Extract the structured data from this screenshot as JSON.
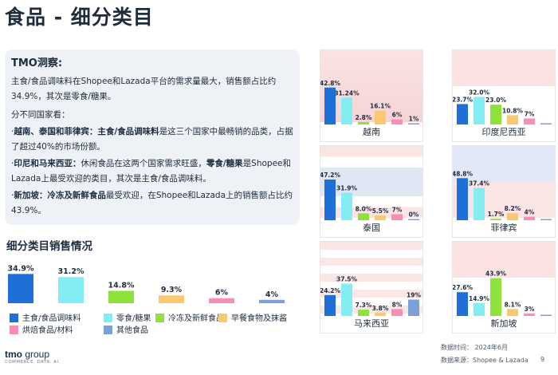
{
  "page_title": "食品 - 细分类目",
  "insight": {
    "heading": "TMO洞察:",
    "p1": "主食/食品调味料在Shopee和Lazada平台的需求量最大，销售额占比约34.9%，其次是零食/糖果。",
    "p2": "分不同国家看：",
    "b1_bold1": "越南、泰国和菲律宾：",
    "b1_bold2": "主食/食品调味料",
    "b1_rest": "是这三个国家中最畅销的品类，占据了超过40%的市场份额。",
    "b2_bold1": "印尼和马来西亚：",
    "b2_mid": "休闲食品在这两个国家需求旺盛，",
    "b2_bold2": "零食/糖果",
    "b2_rest": "是Shopee和Lazada上最受欢迎的类目，其次是主食/食品调味料。",
    "b3_bold1": "新加坡：",
    "b3_bold2": "冷冻及新鲜食品",
    "b3_rest": "最受欢迎，在Shopee和Lazada上的销售额占比约43.9%。"
  },
  "section_title": "细分类目销售情况",
  "colors": {
    "c1": "#1f6fd8",
    "c2": "#84ecf3",
    "c3": "#8ee23a",
    "c4": "#fac870",
    "c5": "#f58fb6",
    "c6": "#7b9fd6"
  },
  "legend": [
    {
      "label": "主食/食品调味料",
      "color": "#1f6fd8"
    },
    {
      "label": "零食/糖果",
      "color": "#84ecf3"
    },
    {
      "label": "冷冻及新鲜食品",
      "color": "#8ee23a"
    },
    {
      "label": "早餐食物及抹酱",
      "color": "#fac870"
    },
    {
      "label": "烘焙食品/材料",
      "color": "#f58fb6"
    },
    {
      "label": "其他食品",
      "color": "#7b9fd6"
    }
  ],
  "chart_data": [
    {
      "type": "bar",
      "title": "细分类目销售情况",
      "categories": [
        "主食/食品调味料",
        "零食/糖果",
        "冷冻及新鲜食品",
        "早餐食物及抹酱",
        "烘焙食品/材料",
        "其他食品"
      ],
      "values": [
        34.9,
        31.2,
        14.8,
        9.3,
        6,
        4
      ],
      "labels": [
        "34.9%",
        "31.2%",
        "14.8%",
        "9.3%",
        "6%",
        "4%"
      ],
      "ylim": [
        0,
        40
      ]
    },
    {
      "type": "bar",
      "name": "越南",
      "values": [
        42.8,
        31.24,
        2.8,
        16.1,
        6,
        1
      ],
      "labels": [
        "42.8%",
        "31.24%",
        "2.8%",
        "16.1%",
        "6%",
        "1%"
      ],
      "ylim": [
        0,
        50
      ]
    },
    {
      "type": "bar",
      "name": "印度尼西亚",
      "values": [
        23.7,
        32.0,
        23.0,
        10.8,
        7,
        0
      ],
      "labels": [
        "23.7%",
        "32.0%",
        "23.0%",
        "10.8%",
        "7%",
        ""
      ],
      "ylim": [
        0,
        50
      ]
    },
    {
      "type": "bar",
      "name": "泰国",
      "values": [
        47.2,
        31.9,
        8.0,
        5.5,
        7,
        0
      ],
      "labels": [
        "47.2%",
        "31.9%",
        "8.0%",
        "5.5%",
        "7%",
        "0%"
      ],
      "ylim": [
        0,
        50
      ]
    },
    {
      "type": "bar",
      "name": "菲律宾",
      "values": [
        48.8,
        37.4,
        1.7,
        8.2,
        4,
        0
      ],
      "labels": [
        "48.8%",
        "37.4%",
        "1.7%",
        "8.2%",
        "4%",
        ""
      ],
      "ylim": [
        0,
        50
      ]
    },
    {
      "type": "bar",
      "name": "马来西亚",
      "values": [
        24.2,
        37.5,
        7.3,
        3.8,
        8,
        19
      ],
      "labels": [
        "24.2%",
        "37.5%",
        "7.3%",
        "3.8%",
        "8%",
        "19%"
      ],
      "ylim": [
        0,
        50
      ]
    },
    {
      "type": "bar",
      "name": "新加坡",
      "values": [
        27.6,
        14.9,
        43.9,
        8.1,
        3,
        0
      ],
      "labels": [
        "27.6%",
        "14.9%",
        "43.9%",
        "8.1%",
        "3%",
        ""
      ],
      "ylim": [
        0,
        50
      ]
    }
  ],
  "logo": {
    "name_a": "tmo",
    "name_b": " group",
    "tagline": "COMMERCE. DATA. AI."
  },
  "footer": {
    "date": "数据时间： 2024年6月",
    "source": "数据来源：Shopee & Lazada",
    "page": "9"
  }
}
